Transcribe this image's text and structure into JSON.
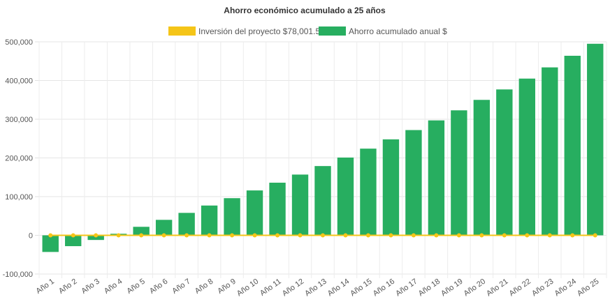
{
  "chart_data": {
    "type": "bar",
    "title": "Ahorro económico acumulado a 25 años",
    "categories": [
      "Año 1",
      "Año 2",
      "Año 3",
      "Año 4",
      "Año 5",
      "Año 6",
      "Año 7",
      "Año 8",
      "Año 9",
      "Año 10",
      "Año 11",
      "Año 12",
      "Año 13",
      "Año 14",
      "Año 15",
      "Año 16",
      "Año 17",
      "Año 18",
      "Año 19",
      "Año 20",
      "Año 21",
      "Año 22",
      "Año 23",
      "Año 24",
      "Año 25"
    ],
    "series": [
      {
        "name": "Inversión del proyecto $78,001.56",
        "kind": "line",
        "color": "#f5c518",
        "values": [
          0,
          0,
          0,
          0,
          0,
          0,
          0,
          0,
          0,
          0,
          0,
          0,
          0,
          0,
          0,
          0,
          0,
          0,
          0,
          0,
          0,
          0,
          0,
          0,
          0
        ]
      },
      {
        "name": "Ahorro acumulado anual $",
        "kind": "bar",
        "color": "#27ae60",
        "values": [
          -43000,
          -28000,
          -12000,
          4000,
          22000,
          40000,
          58000,
          77000,
          96000,
          116000,
          136000,
          157000,
          179000,
          201000,
          224000,
          248000,
          272000,
          297000,
          323000,
          350000,
          377000,
          405000,
          434000,
          464000,
          495000
        ]
      }
    ],
    "ylim": [
      -100000,
      500000
    ],
    "yticks": [
      "500,000",
      "400,000",
      "300,000",
      "200,000",
      "100,000",
      "0",
      "-100,000"
    ],
    "ytick_values": [
      500000,
      400000,
      300000,
      200000,
      100000,
      0,
      -100000
    ],
    "grid": true,
    "legend_position": "top"
  }
}
